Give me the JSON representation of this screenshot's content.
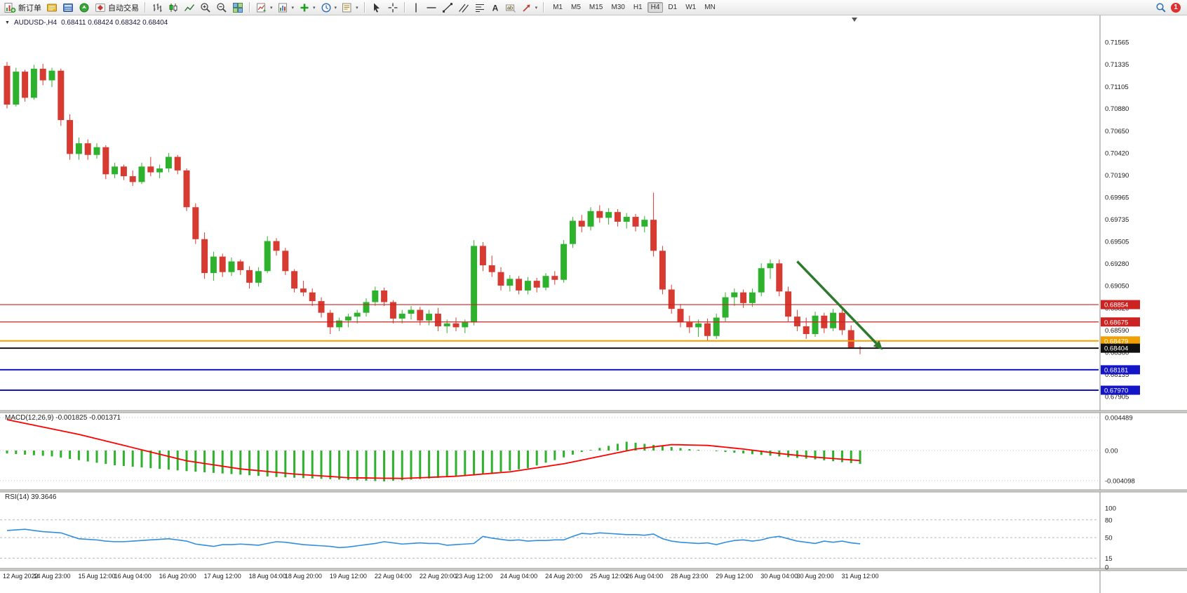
{
  "toolbar": {
    "new_order_label": "新订单",
    "auto_trading_label": "自动交易",
    "timeframes": [
      "M1",
      "M5",
      "M15",
      "M30",
      "H1",
      "H4",
      "D1",
      "W1",
      "MN"
    ],
    "active_timeframe": "H4",
    "notification_count": "1"
  },
  "chart": {
    "symbol_title": "AUDUSD-,H4",
    "ohlc": "0.68411 0.68424 0.68342 0.68404",
    "macd_label": "MACD(12,26,9) -0.001825 -0.001371",
    "rsi_label": "RSI(14) 39.3646"
  },
  "chart_data": {
    "type": "candlestick",
    "symbol": "AUDUSD",
    "timeframe": "H4",
    "last_ohlc": {
      "open": 0.68411,
      "high": 0.68424,
      "low": 0.68342,
      "close": 0.68404
    },
    "colors": {
      "up": "#2eb22e",
      "down": "#d63a31",
      "macd_hist": "#2eb22e",
      "macd_signal": "#ff0000",
      "rsi": "#2f8fde",
      "arrow": "#2d7a2d"
    },
    "price_axis_ticks": [
      "0.71565",
      "0.71335",
      "0.71105",
      "0.70880",
      "0.70650",
      "0.70420",
      "0.70190",
      "0.69965",
      "0.69735",
      "0.69505",
      "0.69280",
      "0.69050",
      "0.68820",
      "0.68590",
      "0.68360",
      "0.68135",
      "0.67905"
    ],
    "time_axis_labels": [
      "12 Aug 2022",
      "14 Aug 23:00",
      "15 Aug 12:00",
      "16 Aug 04:00",
      "16 Aug 20:00",
      "17 Aug 12:00",
      "18 Aug 04:00",
      "18 Aug 20:00",
      "19 Aug 12:00",
      "22 Aug 04:00",
      "22 Aug 20:00",
      "23 Aug 12:00",
      "24 Aug 04:00",
      "24 Aug 20:00",
      "25 Aug 12:00",
      "26 Aug 04:00",
      "28 Aug 23:00",
      "29 Aug 12:00",
      "30 Aug 04:00",
      "30 Aug 20:00",
      "31 Aug 12:00"
    ],
    "time_label_indices": [
      0,
      5,
      10,
      14,
      19,
      24,
      29,
      33,
      38,
      43,
      48,
      52,
      57,
      62,
      67,
      71,
      76,
      81,
      86,
      90,
      95
    ],
    "hlines": [
      {
        "price": "0.68854",
        "value": 0.68854,
        "color": "#cc2222",
        "width": 1.2
      },
      {
        "price": "0.68675",
        "value": 0.68675,
        "color": "#cc2222",
        "width": 1.2
      },
      {
        "price": "0.68479",
        "value": 0.68479,
        "color": "#f0a000",
        "width": 2
      },
      {
        "price": "0.68404",
        "value": 0.68404,
        "color": "#111111",
        "width": 2
      },
      {
        "price": "0.68181",
        "value": 0.68181,
        "color": "#1515c8",
        "width": 2
      },
      {
        "price": "0.67970",
        "value": 0.6797,
        "color": "#1515c8",
        "width": 2
      }
    ],
    "arrow": {
      "color": "#2d7a2d",
      "from": {
        "i": 88,
        "p": 0.693
      },
      "to": {
        "i": 96.8,
        "p": 0.68455
      }
    },
    "candles": [
      [
        0.7132,
        0.7136,
        0.7088,
        0.7092
      ],
      [
        0.7092,
        0.713,
        0.709,
        0.7126
      ],
      [
        0.7126,
        0.7128,
        0.7095,
        0.7099
      ],
      [
        0.7099,
        0.7133,
        0.7097,
        0.7129
      ],
      [
        0.7129,
        0.7134,
        0.7112,
        0.7117
      ],
      [
        0.7117,
        0.713,
        0.711,
        0.7127
      ],
      [
        0.7127,
        0.7129,
        0.707,
        0.7076
      ],
      [
        0.7076,
        0.7082,
        0.7035,
        0.7041
      ],
      [
        0.7041,
        0.7058,
        0.7035,
        0.7052
      ],
      [
        0.7052,
        0.7056,
        0.7035,
        0.704
      ],
      [
        0.704,
        0.7052,
        0.7036,
        0.7048
      ],
      [
        0.7048,
        0.705,
        0.7015,
        0.702
      ],
      [
        0.702,
        0.7032,
        0.7016,
        0.7028
      ],
      [
        0.7028,
        0.703,
        0.7014,
        0.7018
      ],
      [
        0.7018,
        0.7024,
        0.7008,
        0.7012
      ],
      [
        0.7012,
        0.7032,
        0.701,
        0.7028
      ],
      [
        0.7028,
        0.7038,
        0.7018,
        0.7022
      ],
      [
        0.7022,
        0.703,
        0.7016,
        0.7026
      ],
      [
        0.7026,
        0.7042,
        0.7022,
        0.7038
      ],
      [
        0.7038,
        0.704,
        0.702,
        0.7024
      ],
      [
        0.7024,
        0.7026,
        0.6982,
        0.6986
      ],
      [
        0.6986,
        0.699,
        0.6948,
        0.6953
      ],
      [
        0.6953,
        0.696,
        0.6912,
        0.6918
      ],
      [
        0.6918,
        0.694,
        0.691,
        0.6935
      ],
      [
        0.6935,
        0.6938,
        0.6914,
        0.6919
      ],
      [
        0.6919,
        0.6934,
        0.6915,
        0.693
      ],
      [
        0.693,
        0.6932,
        0.6916,
        0.6921
      ],
      [
        0.6921,
        0.6925,
        0.6902,
        0.6908
      ],
      [
        0.6908,
        0.6924,
        0.6904,
        0.692
      ],
      [
        0.692,
        0.6956,
        0.6918,
        0.6951
      ],
      [
        0.6951,
        0.6954,
        0.6936,
        0.6941
      ],
      [
        0.6941,
        0.6944,
        0.6916,
        0.692
      ],
      [
        0.692,
        0.6922,
        0.6898,
        0.6902
      ],
      [
        0.6902,
        0.691,
        0.6894,
        0.6898
      ],
      [
        0.6898,
        0.6902,
        0.6884,
        0.6889
      ],
      [
        0.6889,
        0.6893,
        0.6872,
        0.6877
      ],
      [
        0.6877,
        0.688,
        0.6855,
        0.6862
      ],
      [
        0.6862,
        0.6872,
        0.6858,
        0.6869
      ],
      [
        0.6869,
        0.6876,
        0.6862,
        0.6873
      ],
      [
        0.6873,
        0.688,
        0.6866,
        0.6877
      ],
      [
        0.6877,
        0.6892,
        0.6873,
        0.6888
      ],
      [
        0.6888,
        0.6904,
        0.6884,
        0.69
      ],
      [
        0.69,
        0.6903,
        0.6884,
        0.6888
      ],
      [
        0.6888,
        0.689,
        0.6866,
        0.6871
      ],
      [
        0.6871,
        0.688,
        0.6866,
        0.6876
      ],
      [
        0.6876,
        0.6884,
        0.687,
        0.688
      ],
      [
        0.688,
        0.6883,
        0.6864,
        0.6869
      ],
      [
        0.6869,
        0.688,
        0.6864,
        0.6876
      ],
      [
        0.6876,
        0.6882,
        0.6858,
        0.6863
      ],
      [
        0.6863,
        0.687,
        0.6856,
        0.6866
      ],
      [
        0.6866,
        0.6872,
        0.6858,
        0.6862
      ],
      [
        0.6862,
        0.687,
        0.6856,
        0.6867
      ],
      [
        0.6867,
        0.6952,
        0.6864,
        0.6946
      ],
      [
        0.6946,
        0.695,
        0.692,
        0.6926
      ],
      [
        0.6926,
        0.6936,
        0.6914,
        0.6919
      ],
      [
        0.6919,
        0.6924,
        0.69,
        0.6905
      ],
      [
        0.6905,
        0.6916,
        0.6899,
        0.6912
      ],
      [
        0.6912,
        0.6915,
        0.6896,
        0.69
      ],
      [
        0.69,
        0.6914,
        0.6896,
        0.691
      ],
      [
        0.691,
        0.6913,
        0.6898,
        0.6903
      ],
      [
        0.6903,
        0.6918,
        0.69,
        0.6915
      ],
      [
        0.6915,
        0.692,
        0.6906,
        0.6911
      ],
      [
        0.6911,
        0.6952,
        0.6908,
        0.6948
      ],
      [
        0.6948,
        0.6976,
        0.6944,
        0.6972
      ],
      [
        0.6972,
        0.6978,
        0.696,
        0.6966
      ],
      [
        0.6966,
        0.6986,
        0.6962,
        0.6982
      ],
      [
        0.6982,
        0.6988,
        0.697,
        0.6975
      ],
      [
        0.6975,
        0.6985,
        0.6968,
        0.6981
      ],
      [
        0.6981,
        0.6984,
        0.6966,
        0.6971
      ],
      [
        0.6971,
        0.698,
        0.6964,
        0.6976
      ],
      [
        0.6976,
        0.6979,
        0.6961,
        0.6966
      ],
      [
        0.6966,
        0.6977,
        0.696,
        0.6973
      ],
      [
        0.6973,
        0.7001,
        0.6935,
        0.6941
      ],
      [
        0.6941,
        0.6946,
        0.6896,
        0.6901
      ],
      [
        0.6901,
        0.6906,
        0.6876,
        0.6881
      ],
      [
        0.6881,
        0.6886,
        0.6862,
        0.6867
      ],
      [
        0.6867,
        0.6874,
        0.6856,
        0.6862
      ],
      [
        0.6862,
        0.687,
        0.6852,
        0.6866
      ],
      [
        0.6866,
        0.6871,
        0.6848,
        0.6853
      ],
      [
        0.6853,
        0.6876,
        0.685,
        0.6872
      ],
      [
        0.6872,
        0.6898,
        0.6868,
        0.6893
      ],
      [
        0.6893,
        0.6902,
        0.6884,
        0.6898
      ],
      [
        0.6898,
        0.6901,
        0.6882,
        0.6887
      ],
      [
        0.6887,
        0.6902,
        0.6883,
        0.6898
      ],
      [
        0.6898,
        0.6928,
        0.6894,
        0.6923
      ],
      [
        0.6923,
        0.6932,
        0.6912,
        0.6928
      ],
      [
        0.6928,
        0.6932,
        0.6894,
        0.6899
      ],
      [
        0.6899,
        0.6904,
        0.6868,
        0.6873
      ],
      [
        0.6873,
        0.688,
        0.6858,
        0.6863
      ],
      [
        0.6863,
        0.6872,
        0.685,
        0.6855
      ],
      [
        0.6855,
        0.6878,
        0.6852,
        0.6874
      ],
      [
        0.6874,
        0.6877,
        0.6856,
        0.6861
      ],
      [
        0.6861,
        0.6881,
        0.6858,
        0.6877
      ],
      [
        0.6877,
        0.688,
        0.6854,
        0.6859
      ],
      [
        0.6859,
        0.6864,
        0.684,
        0.68411
      ],
      [
        0.68411,
        0.68424,
        0.68342,
        0.68404
      ]
    ],
    "macd": {
      "label": "MACD(12,26,9)",
      "value": -0.001825,
      "signal_value": -0.001371,
      "axis_labels": [
        "0.004489",
        "0.00",
        "-0.004098"
      ],
      "axis_values": [
        0.004489,
        0,
        -0.004098
      ],
      "histogram": [
        -0.0004,
        -0.00048,
        -0.00056,
        -0.00064,
        -0.00072,
        -0.0008,
        -0.00097,
        -0.00114,
        -0.00131,
        -0.00149,
        -0.00166,
        -0.00183,
        -0.002,
        -0.0021,
        -0.0022,
        -0.0023,
        -0.0024,
        -0.0025,
        -0.0026,
        -0.0027,
        -0.0028,
        -0.00288,
        -0.00296,
        -0.00304,
        -0.00312,
        -0.0032,
        -0.00328,
        -0.00336,
        -0.00344,
        -0.00352,
        -0.0036,
        -0.00365,
        -0.0037,
        -0.00375,
        -0.0038,
        -0.00385,
        -0.0039,
        -0.00395,
        -0.004,
        -0.00405,
        -0.0041,
        -0.00415,
        -0.0042,
        -0.00412,
        -0.00404,
        -0.00396,
        -0.00388,
        -0.0038,
        -0.00372,
        -0.00364,
        -0.00356,
        -0.00348,
        -0.0034,
        -0.00323,
        -0.00306,
        -0.0029,
        -0.00273,
        -0.00256,
        -0.0024,
        -0.00203,
        -0.00166,
        -0.0013,
        -0.00093,
        -0.00056,
        -0.0002,
        8e-05,
        0.00036,
        0.00064,
        0.00092,
        0.0012,
        0.00106,
        0.00091,
        0.00077,
        0.00063,
        0.00049,
        0.00034,
        0.0002,
        0.0001,
        0.0,
        -0.0001,
        -0.0002,
        -0.0003,
        -0.0004,
        -0.0005,
        -0.0006,
        -0.0007,
        -0.0008,
        -0.0009,
        -0.001,
        -0.0011,
        -0.0012,
        -0.00133,
        -0.00145,
        -0.00158,
        -0.0017,
        -0.001825
      ],
      "signal": [
        0.0042,
        0.00395,
        0.0037,
        0.00345,
        0.0032,
        0.00295,
        0.0027,
        0.00245,
        0.0022,
        0.0019,
        0.0016,
        0.0013,
        0.001,
        0.0007,
        0.0004,
        0.0001,
        -0.0002,
        -0.0005,
        -0.0008,
        -0.0011,
        -0.0014,
        -0.00158,
        -0.00177,
        -0.00195,
        -0.00213,
        -0.00232,
        -0.0025,
        -0.00262,
        -0.00273,
        -0.00285,
        -0.00297,
        -0.00308,
        -0.0032,
        -0.00328,
        -0.00337,
        -0.00345,
        -0.00353,
        -0.00362,
        -0.0037,
        -0.00372,
        -0.00373,
        -0.00375,
        -0.00377,
        -0.00378,
        -0.0038,
        -0.00375,
        -0.0037,
        -0.00365,
        -0.0036,
        -0.00355,
        -0.0035,
        -0.0034,
        -0.0033,
        -0.0032,
        -0.0031,
        -0.003,
        -0.0029,
        -0.00272,
        -0.00253,
        -0.00235,
        -0.00217,
        -0.00198,
        -0.0018,
        -0.00155,
        -0.0013,
        -0.00105,
        -0.0008,
        -0.00055,
        -0.0003,
        -5e-05,
        0.0002,
        0.00035,
        0.0005,
        0.00065,
        0.0008,
        0.00078,
        0.00075,
        0.00073,
        0.0007,
        0.00058,
        0.00045,
        0.00033,
        0.0002,
        5e-05,
        -0.0001,
        -0.00025,
        -0.0004,
        -0.00053,
        -0.00065,
        -0.00078,
        -0.0009,
        -0.00099,
        -0.00109,
        -0.00118,
        -0.00127,
        -0.00137
      ]
    },
    "rsi": {
      "label": "RSI(14)",
      "value": 39.3646,
      "levels": [
        80,
        50,
        15
      ],
      "axis_labels": [
        "100",
        "80",
        "50",
        "15",
        "0"
      ],
      "axis_values": [
        100,
        80,
        50,
        15,
        0
      ],
      "values": [
        62,
        63,
        64,
        62,
        60,
        59,
        58,
        53,
        48,
        47,
        46,
        44,
        43,
        43,
        44,
        45,
        46,
        47,
        48,
        46,
        44,
        39,
        37,
        35,
        38,
        38,
        39,
        38,
        37,
        40,
        43,
        42,
        40,
        38,
        37,
        36,
        35,
        33,
        34,
        36,
        38,
        40,
        43,
        41,
        39,
        40,
        41,
        40,
        40,
        37,
        38,
        39,
        40,
        52,
        49,
        47,
        45,
        46,
        44,
        45,
        45,
        46,
        46,
        52,
        57,
        56,
        58,
        57,
        56,
        55,
        55,
        54,
        56,
        48,
        44,
        42,
        41,
        40,
        41,
        38,
        42,
        45,
        46,
        44,
        46,
        50,
        52,
        48,
        44,
        42,
        40,
        44,
        42,
        44,
        41,
        39.36
      ]
    }
  }
}
